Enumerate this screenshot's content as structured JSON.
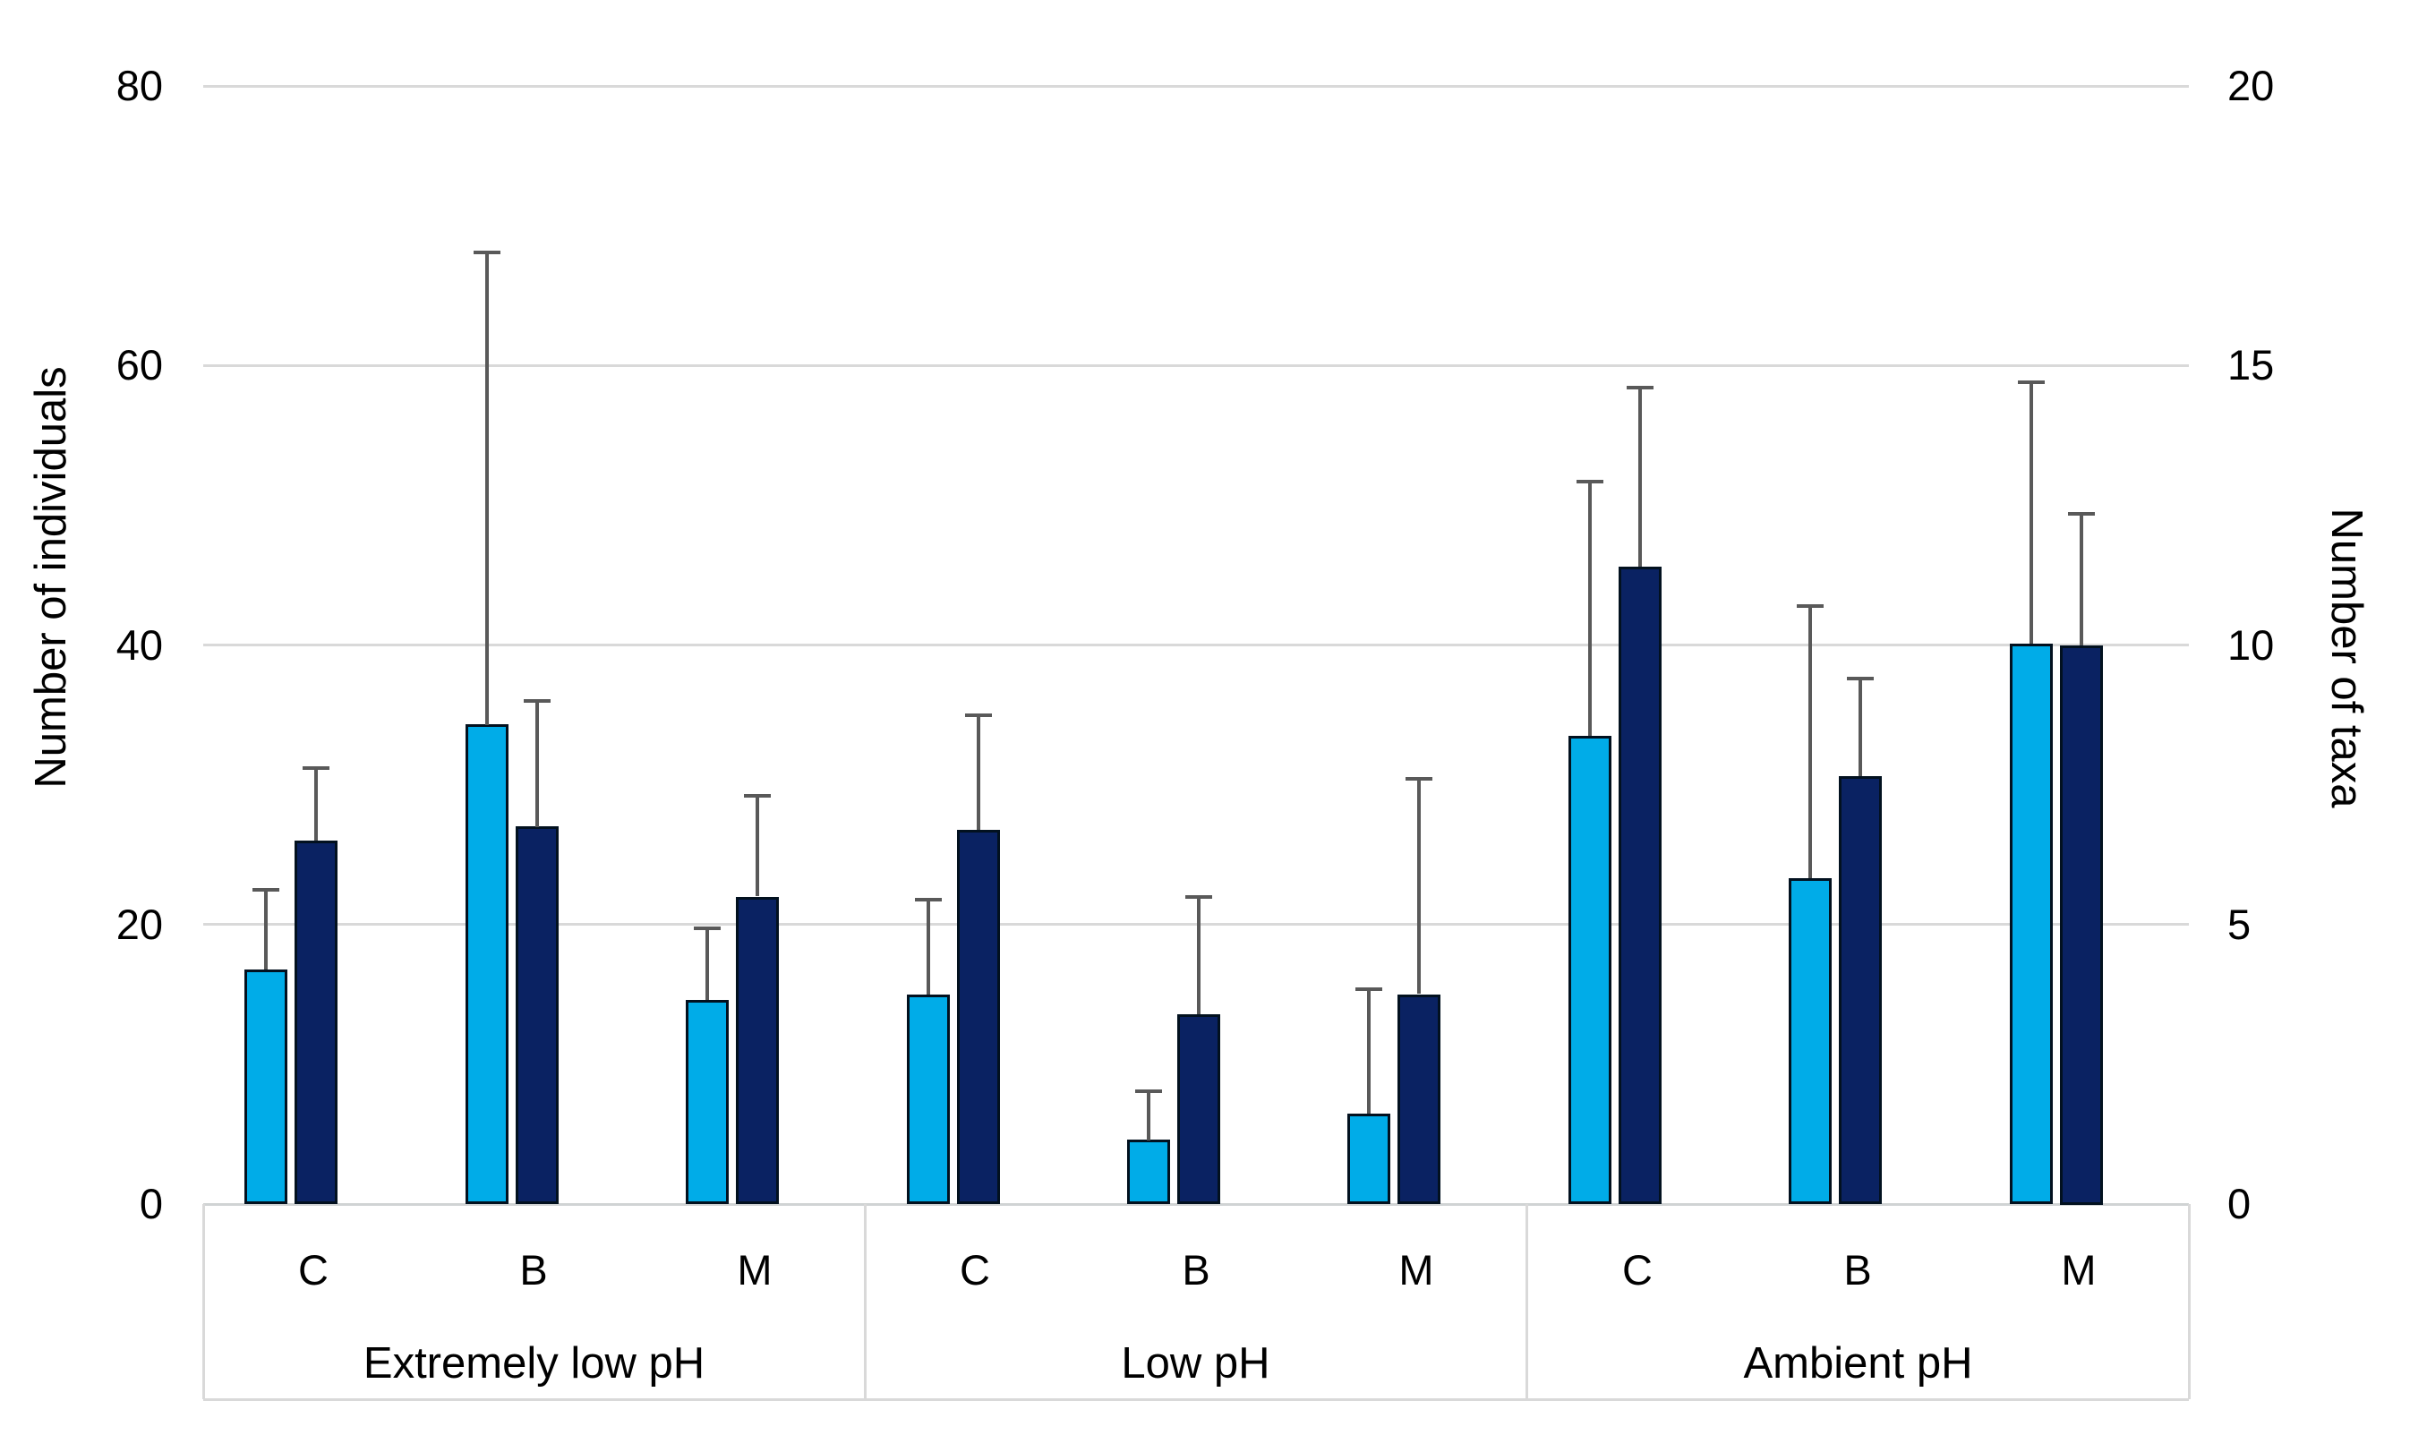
{
  "chart_data": {
    "type": "bar",
    "title": "",
    "left_axis": {
      "label": "Number of individuals",
      "ticks": [
        0,
        20,
        40,
        60,
        80
      ],
      "min": 0,
      "max": 80
    },
    "right_axis": {
      "label": "Number of taxa",
      "ticks": [
        0,
        5,
        10,
        15,
        20
      ],
      "min": 0,
      "max": 20
    },
    "groups": [
      {
        "label": "Extremely low pH",
        "categories": [
          "C",
          "B",
          "M"
        ]
      },
      {
        "label": "Low pH",
        "categories": [
          "C",
          "B",
          "M"
        ]
      },
      {
        "label": "Ambient pH",
        "categories": [
          "C",
          "B",
          "M"
        ]
      }
    ],
    "categories_flat": [
      "C",
      "B",
      "M",
      "C",
      "B",
      "M",
      "C",
      "B",
      "M"
    ],
    "series": [
      {
        "name": "Number of individuals",
        "axis": "left",
        "color": "#00ACE8",
        "values": [
          16.8,
          34.3,
          14.6,
          15.0,
          4.6,
          6.5,
          33.5,
          23.3,
          40.1
        ],
        "errors_plus": [
          5.7,
          33.8,
          5.1,
          6.8,
          3.5,
          8.9,
          18.2,
          19.5,
          18.7
        ]
      },
      {
        "name": "Number of taxa",
        "axis": "right",
        "color": "#0A2262",
        "values": [
          6.5,
          6.75,
          5.5,
          6.7,
          3.4,
          3.75,
          11.4,
          7.65,
          10.0
        ],
        "errors_plus": [
          1.3,
          2.25,
          1.8,
          2.05,
          2.1,
          3.85,
          3.2,
          1.75,
          2.35
        ]
      }
    ],
    "colors": {
      "gridline": "#d9d9d9",
      "axis_line": "#d0d3d4",
      "category_box_border": "#d9d9d9",
      "error_bar": "#595959",
      "bar_border": "#02111f",
      "text": "#000000",
      "background": "#ffffff"
    },
    "legend": null,
    "grid": true
  }
}
